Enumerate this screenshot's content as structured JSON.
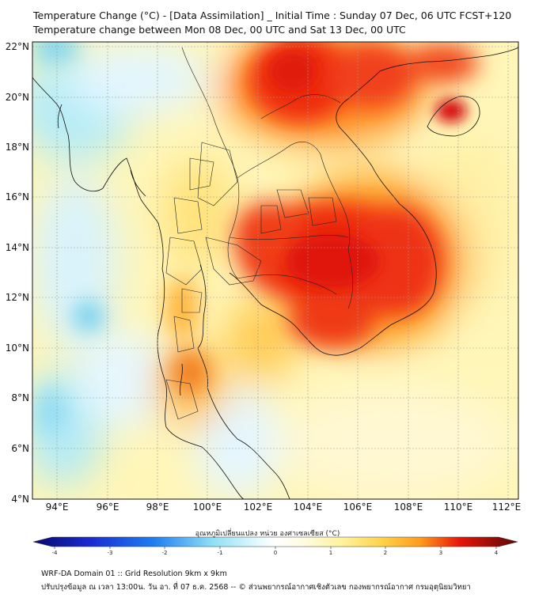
{
  "title": {
    "line1": "Temperature Change (°C) - [Data Assimilation] _ Initial Time : Sunday 07 Dec, 06 UTC FCST+120",
    "line2": "Temperature change between Mon 08 Dec, 00 UTC and Sat 13 Dec, 00 UTC"
  },
  "map": {
    "lat_labels": [
      "22°N",
      "20°N",
      "18°N",
      "16°N",
      "14°N",
      "12°N",
      "10°N",
      "8°N",
      "6°N",
      "4°N"
    ],
    "lon_labels": [
      "94°E",
      "96°E",
      "98°E",
      "100°E",
      "102°E",
      "104°E",
      "106°E",
      "108°E",
      "110°E",
      "112°E"
    ],
    "lat_range": [
      4,
      22.3
    ],
    "lon_range": [
      93,
      112.4
    ]
  },
  "colorbar": {
    "title": "อุณหภูมิเปลี่ยนแปลง หน่วย องศาเซลเซียส (°C)",
    "tick_labels": [
      "-4",
      "-3",
      "-2",
      "-1",
      "0",
      "1",
      "2",
      "3",
      "4"
    ],
    "range": [
      -4,
      4
    ],
    "colors": {
      "strong_cool": "#08086e",
      "cool": "#1f7ff0",
      "light_cool": "#8fe0f4",
      "neutral": "#ffffff",
      "warm": "#fff29a",
      "orange": "#ff9a1a",
      "hot": "#e8160a",
      "extreme": "#5c0606"
    }
  },
  "footer": {
    "line1": "WRF-DA Domain 01 :: Grid Resolution 9km x 9km",
    "line2": "ปรับปรุงข้อมูล ณ เวลา 13:00น. วัน อา. ที่ 07 ธ.ค. 2568 -- © ส่วนพยากรณ์อากาศเชิงตัวเลข กองพยากรณ์อากาศ กรมอุตุนิยมวิทยา"
  }
}
